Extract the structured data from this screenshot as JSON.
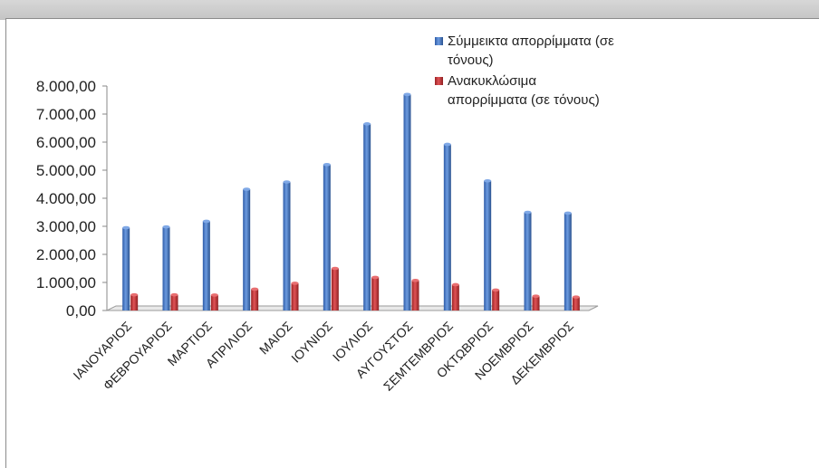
{
  "chart_data": {
    "type": "bar",
    "categories": [
      "ΙΑΝΟΥΑΡΙΟΣ",
      "ΦΕΒΡΟΥΑΡΙΟΣ",
      "ΜΑΡΤΙΟΣ",
      "ΑΠΡΙΛΙΟΣ",
      "ΜΑΙΟΣ",
      "ΙΟΥΝΙΟΣ",
      "ΙΟΥΛΙΟΣ",
      "ΑΥΓΟΥΣΤΟΣ",
      "ΣΕΜΤΕΜΒΡΙΟΣ",
      "ΟΚΤΩΒΡΙΟΣ",
      "ΝΟΕΜΒΡΙΟΣ",
      "ΔΕΚΕΜΒΡΙΟΣ"
    ],
    "series": [
      {
        "name": "Σύμμεικτα απορρίμματα (σε τόνους)",
        "name_lines": [
          "Σύμμεικτα απορρίμματα (σε",
          "τόνους)"
        ],
        "color": "#4a7ac6",
        "values": [
          2950,
          2980,
          3180,
          4320,
          4580,
          5200,
          6650,
          7700,
          5920,
          4620,
          3500,
          3470
        ]
      },
      {
        "name": "Ανακυκλώσιμα απορρίμματα (σε τόνους)",
        "name_lines": [
          "Ανακυκλώσιμα",
          "απορρίμματα (σε τόνους)"
        ],
        "color": "#c0393b",
        "values": [
          560,
          560,
          550,
          760,
          970,
          1500,
          1180,
          1070,
          920,
          730,
          510,
          480
        ]
      }
    ],
    "yticks": [
      "0,00",
      "1.000,00",
      "2.000,00",
      "3.000,00",
      "4.000,00",
      "5.000,00",
      "6.000,00",
      "7.000,00",
      "8.000,00"
    ],
    "ylim": [
      0,
      8000
    ],
    "legend_position": "top-right",
    "grid": false
  }
}
